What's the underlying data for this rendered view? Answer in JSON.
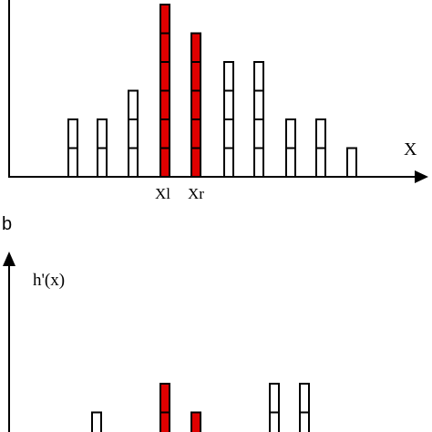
{
  "panel_a": {
    "x_axis_label": "X",
    "marker_left": "Xl",
    "marker_right": "Xr",
    "cell_unit": 1,
    "highlight_color": "#e00000",
    "outline_color": "#000000",
    "bars": [
      {
        "count": 2,
        "highlight": false
      },
      {
        "count": 2,
        "highlight": false
      },
      {
        "count": 3,
        "highlight": false
      },
      {
        "count": 6,
        "highlight": true
      },
      {
        "count": 5,
        "highlight": true
      },
      {
        "count": 4,
        "highlight": false
      },
      {
        "count": 4,
        "highlight": false
      },
      {
        "count": 2,
        "highlight": false
      },
      {
        "count": 2,
        "highlight": false
      },
      {
        "count": 1,
        "highlight": false
      }
    ]
  },
  "panel_b": {
    "letter": "b",
    "y_axis_label": "h'(x)",
    "bars": [
      {
        "count": 1,
        "highlight": false
      },
      {
        "count": 2,
        "highlight": true
      },
      {
        "count": 1,
        "highlight": true
      },
      {
        "count": 2,
        "highlight": false
      },
      {
        "count": 2,
        "highlight": false
      }
    ]
  }
}
